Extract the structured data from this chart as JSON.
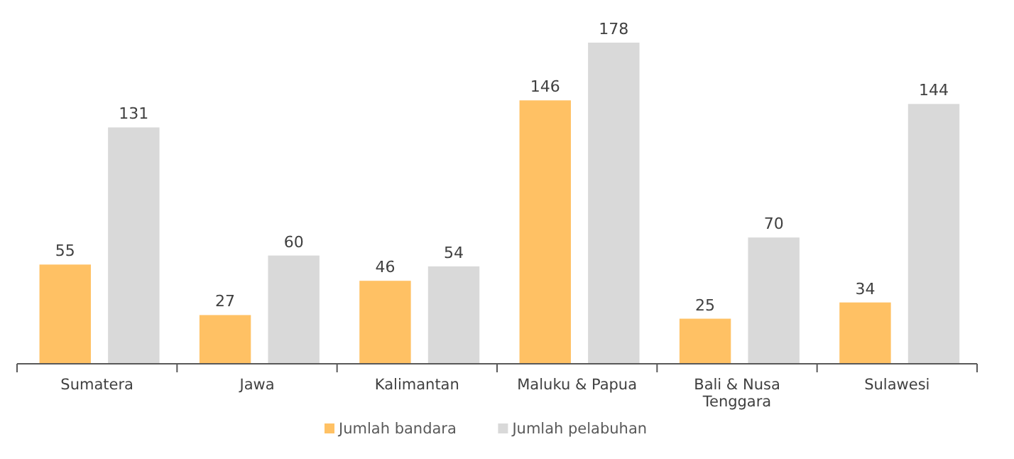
{
  "chart_data": {
    "type": "bar",
    "categories": [
      "Sumatera",
      "Jawa",
      "Kalimantan",
      "Maluku & Papua",
      "Bali & Nusa Tenggara",
      "Sulawesi"
    ],
    "series": [
      {
        "name": "Jumlah bandara",
        "color": "#ffc164",
        "values": [
          55,
          27,
          46,
          146,
          25,
          34
        ]
      },
      {
        "name": "Jumlah pelabuhan",
        "color": "#d9d9d9",
        "values": [
          131,
          60,
          54,
          178,
          70,
          144
        ]
      }
    ],
    "relative": false,
    "data_labels": true,
    "legend": "bottom",
    "grid": false
  }
}
